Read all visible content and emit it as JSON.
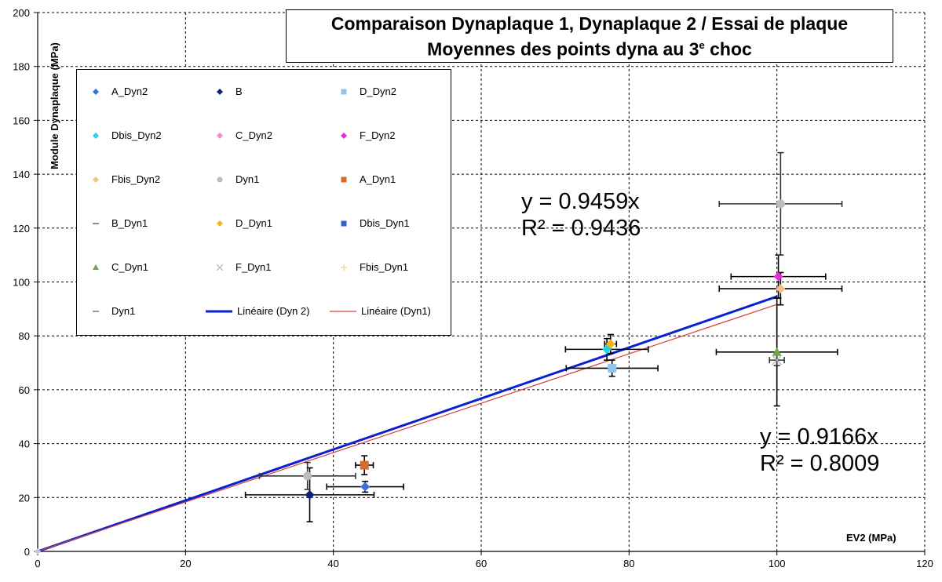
{
  "chart_data": {
    "type": "scatter",
    "title_line1": "Comparaison Dynaplaque 1, Dynaplaque 2 / Essai de plaque",
    "title_line2_main": "Moyennes des points dyna au 3",
    "title_line2_sup": "e",
    "title_line2_end": " choc",
    "xlabel": "EV2 (MPa)",
    "ylabel": "Module Dynaplaque (MPa)",
    "xlim": [
      0,
      120
    ],
    "ylim": [
      0,
      200
    ],
    "xticks": [
      "0",
      "20",
      "40",
      "60",
      "80",
      "100",
      "120"
    ],
    "yticks": [
      "0",
      "20",
      "40",
      "60",
      "80",
      "100",
      "120",
      "140",
      "160",
      "180",
      "200"
    ],
    "grid": true,
    "legend_position": "top-left",
    "series": [
      {
        "name": "A_Dyn2",
        "color": "#3a6fd8",
        "marker": "diamond",
        "points": [
          {
            "x": 44.3,
            "y": 24,
            "xerr": 5.2,
            "yerr": 2
          }
        ]
      },
      {
        "name": "B",
        "color": "#10207a",
        "marker": "diamond",
        "points": [
          {
            "x": 36.8,
            "y": 21,
            "xerr": 8.7,
            "yerr": 10
          }
        ]
      },
      {
        "name": "D_Dyn2",
        "color": "#8fc4f0",
        "marker": "square",
        "points": [
          {
            "x": 77.7,
            "y": 68,
            "xerr": 6.2,
            "yerr": 3
          }
        ]
      },
      {
        "name": "Dbis_Dyn2",
        "color": "#1fd6e8",
        "marker": "diamond",
        "points": [
          {
            "x": 77,
            "y": 75,
            "xerr": 5.6,
            "yerr": 4
          }
        ]
      },
      {
        "name": "C_Dyn2",
        "color": "#f08cc4",
        "marker": "diamond",
        "points": []
      },
      {
        "name": "F_Dyn2",
        "color": "#e82ad8",
        "marker": "diamond",
        "points": [
          {
            "x": 100.2,
            "y": 102,
            "xerr": 6.4,
            "yerr": 8
          }
        ]
      },
      {
        "name": "Fbis_Dyn2",
        "color": "#f5c088",
        "marker": "diamond",
        "points": [
          {
            "x": 100.5,
            "y": 97.5,
            "xerr": 8.3,
            "yerr": 6
          }
        ]
      },
      {
        "name": "Dyn1",
        "color": "#bcbcbc",
        "marker": "circle",
        "points": [
          {
            "x": 36.5,
            "y": 28,
            "xerr": 6.5,
            "yerr": 5
          },
          {
            "x": 100.5,
            "y": 129,
            "xerr": 8.3,
            "yerr": 19
          }
        ]
      },
      {
        "name": "A_Dyn1",
        "color": "#d86a2a",
        "marker": "square",
        "points": [
          {
            "x": 44.2,
            "y": 32,
            "xerr": 1.2,
            "yerr": 3.5
          }
        ]
      },
      {
        "name": "B_Dyn1",
        "color": "#8c8c8c",
        "marker": "dash",
        "points": []
      },
      {
        "name": "D_Dyn1",
        "color": "#f2b61c",
        "marker": "diamond",
        "points": [
          {
            "x": 77.5,
            "y": 77,
            "xerr": 0.8,
            "yerr": 3.5
          }
        ]
      },
      {
        "name": "Dbis_Dyn1",
        "color": "#3a5fc8",
        "marker": "square",
        "points": []
      },
      {
        "name": "C_Dyn1",
        "color": "#6aa84f",
        "marker": "triangle",
        "points": [
          {
            "x": 100,
            "y": 74,
            "xerr": 8.2,
            "yerr": 20
          }
        ]
      },
      {
        "name": "F_Dyn1",
        "color": "#b4bcc4",
        "marker": "cross",
        "points": [
          {
            "x": 100,
            "y": 71,
            "xerr": 1,
            "yerr": 2
          }
        ]
      },
      {
        "name": "Fbis_Dyn1",
        "color": "#f2d27a",
        "marker": "plus",
        "points": []
      },
      {
        "name": "Dyn1",
        "color": "#9a9a9a",
        "marker": "dash",
        "points": []
      }
    ],
    "trendlines": [
      {
        "name": "Linéaire (Dyn 2)",
        "color": "#0a1fd0",
        "width": 3,
        "slope": 0.9459,
        "x_end": 100
      },
      {
        "name": "Linéaire (Dyn1)",
        "color": "#d04040",
        "width": 1.2,
        "slope": 0.9166,
        "x_end": 100
      }
    ],
    "annotations": [
      {
        "eq": "y = 0.9459x",
        "r2": "R² = 0.9436"
      },
      {
        "eq": "y = 0.9166x",
        "r2": "R² = 0.8009"
      }
    ]
  }
}
